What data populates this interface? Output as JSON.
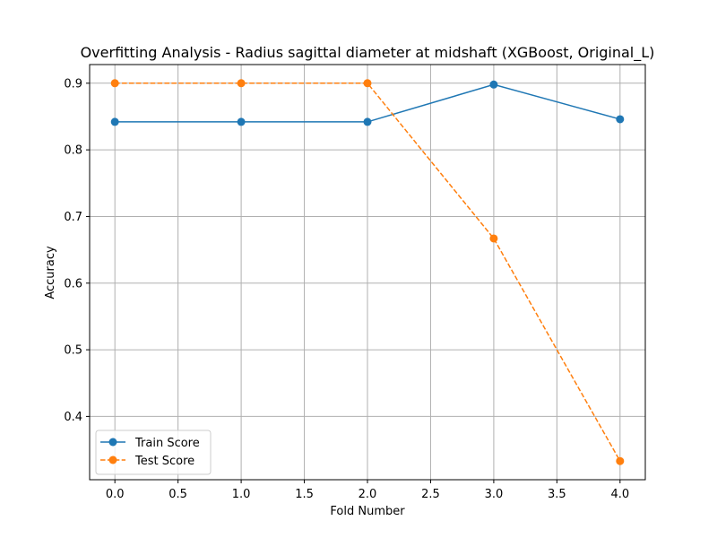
{
  "chart_data": {
    "type": "line",
    "title": "Overfitting Analysis - Radius sagittal diameter at midshaft (XGBoost, Original_L)",
    "xlabel": "Fold Number",
    "ylabel": "Accuracy",
    "xlim": [
      -0.2,
      4.2
    ],
    "ylim": [
      0.305,
      0.928
    ],
    "xticks": [
      0.0,
      0.5,
      1.0,
      1.5,
      2.0,
      2.5,
      3.0,
      3.5,
      4.0
    ],
    "xtick_labels": [
      "0.0",
      "0.5",
      "1.0",
      "1.5",
      "2.0",
      "2.5",
      "3.0",
      "3.5",
      "4.0"
    ],
    "yticks": [
      0.4,
      0.5,
      0.6,
      0.7,
      0.8,
      0.9
    ],
    "ytick_labels": [
      "0.4",
      "0.5",
      "0.6",
      "0.7",
      "0.8",
      "0.9"
    ],
    "grid": true,
    "legend_position": "lower-left",
    "x": [
      0,
      1,
      2,
      3,
      4
    ],
    "series": [
      {
        "name": "Train Score",
        "values": [
          0.842,
          0.842,
          0.842,
          0.898,
          0.846
        ],
        "color": "#1f77b4",
        "line_style": "solid",
        "marker": "circle"
      },
      {
        "name": "Test Score",
        "values": [
          0.9,
          0.9,
          0.9,
          0.667,
          0.333
        ],
        "color": "#ff7f0e",
        "line_style": "dashed",
        "marker": "circle"
      }
    ]
  }
}
